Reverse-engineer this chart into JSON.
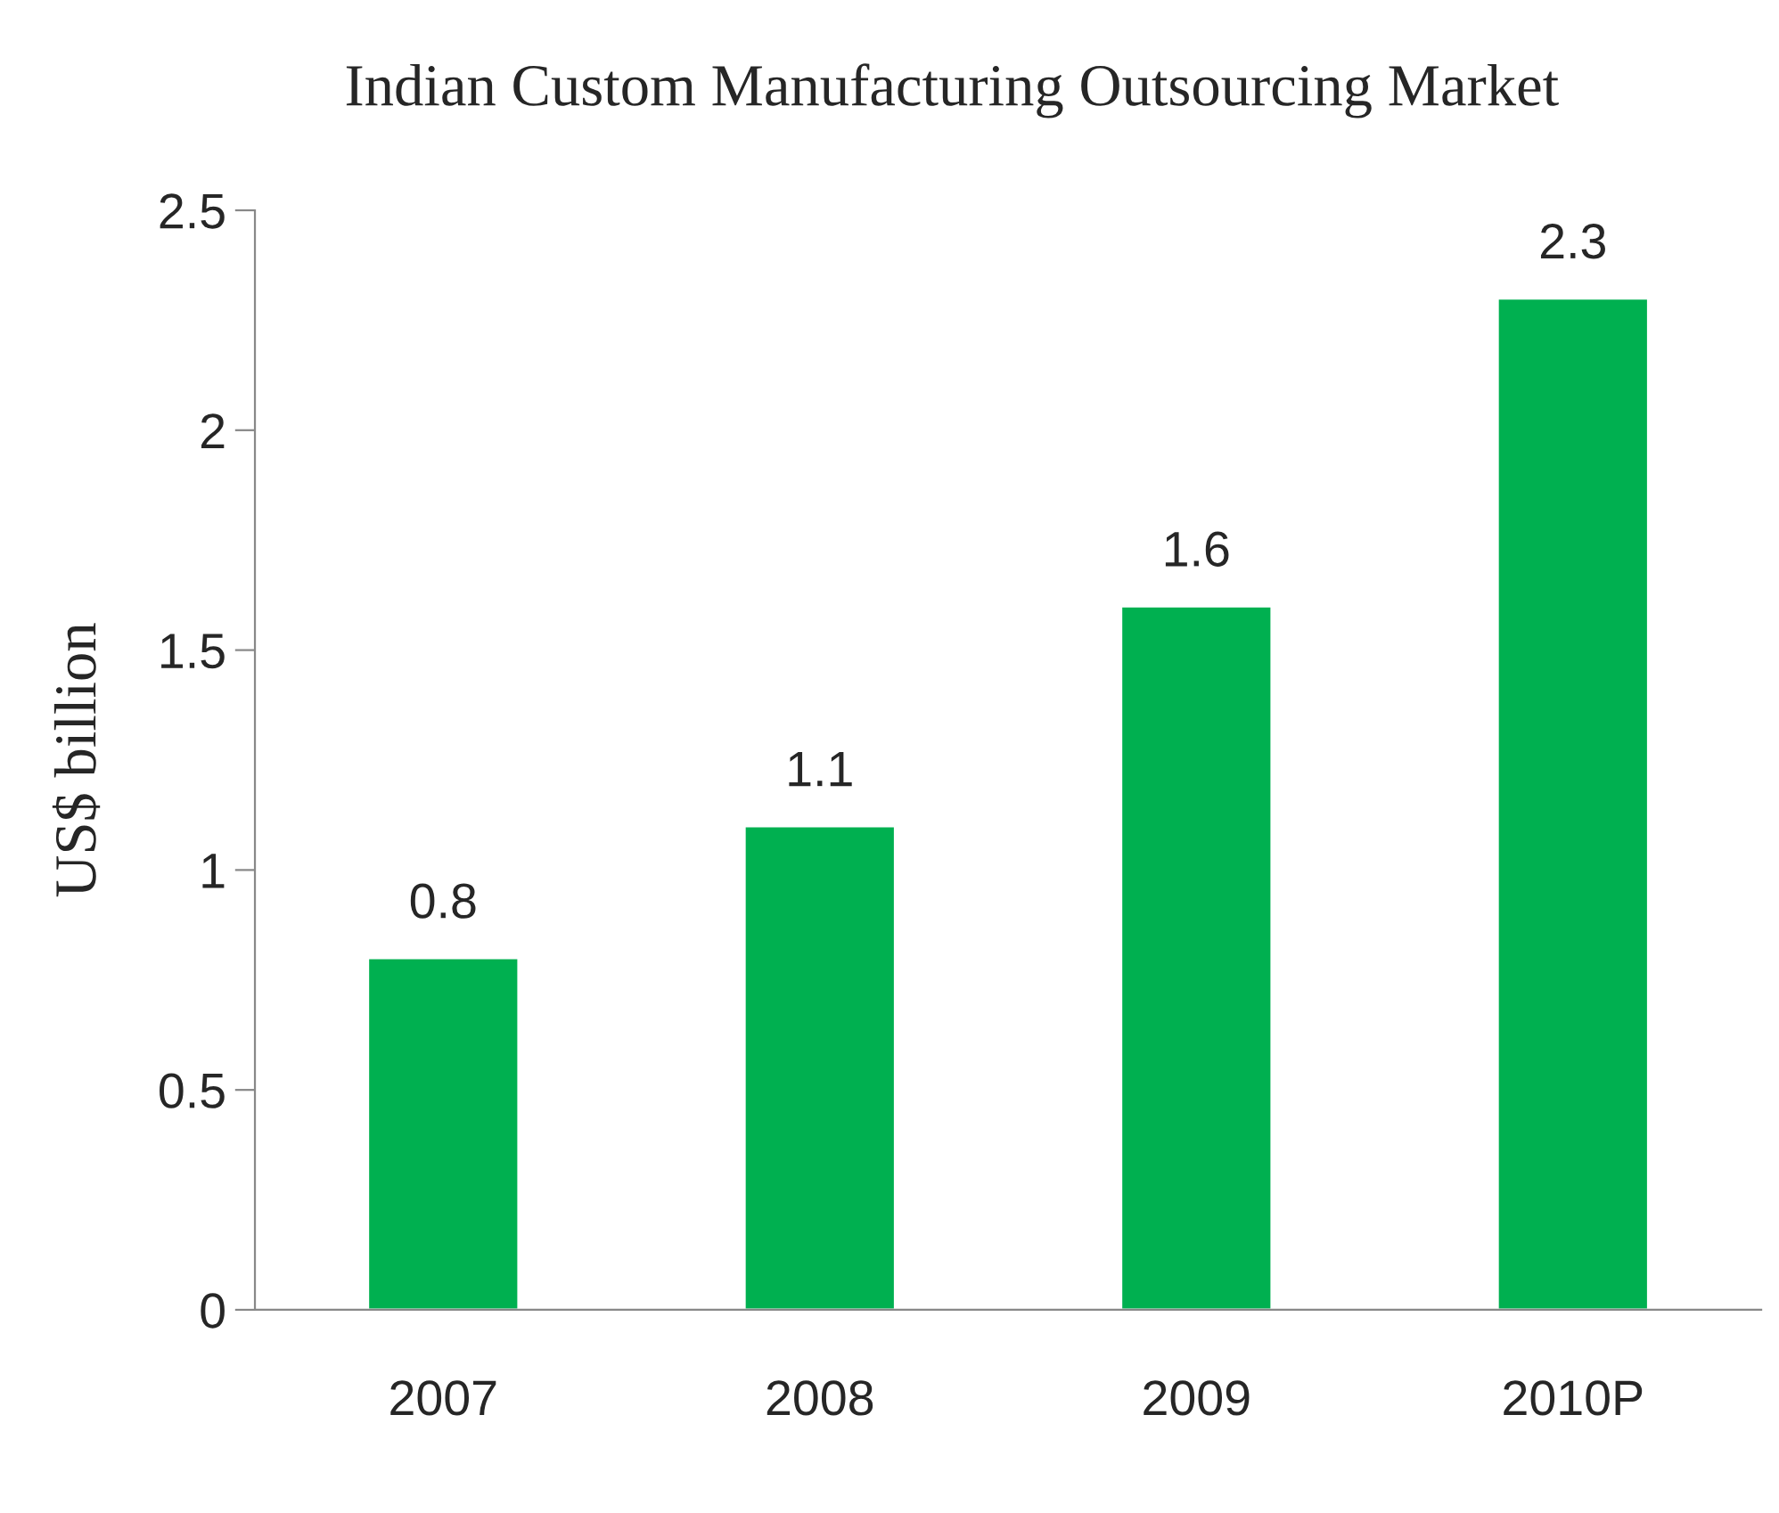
{
  "chart_data": {
    "type": "bar",
    "title": "Indian Custom Manufacturing Outsourcing Market",
    "ylabel": "US$ billion",
    "categories": [
      "2007",
      "2008",
      "2009",
      "2010P"
    ],
    "values": [
      0.8,
      1.1,
      1.6,
      2.3
    ],
    "color": "#00b050",
    "ylim": [
      0,
      2.5
    ],
    "yticks": [
      0,
      {
        "value": 0.5,
        "label": "0.5"
      },
      1,
      {
        "value": 1.5,
        "label": "1.5"
      },
      2,
      {
        "value": 2.5,
        "label": "2.5"
      }
    ],
    "grid": false,
    "data_labels": true
  }
}
